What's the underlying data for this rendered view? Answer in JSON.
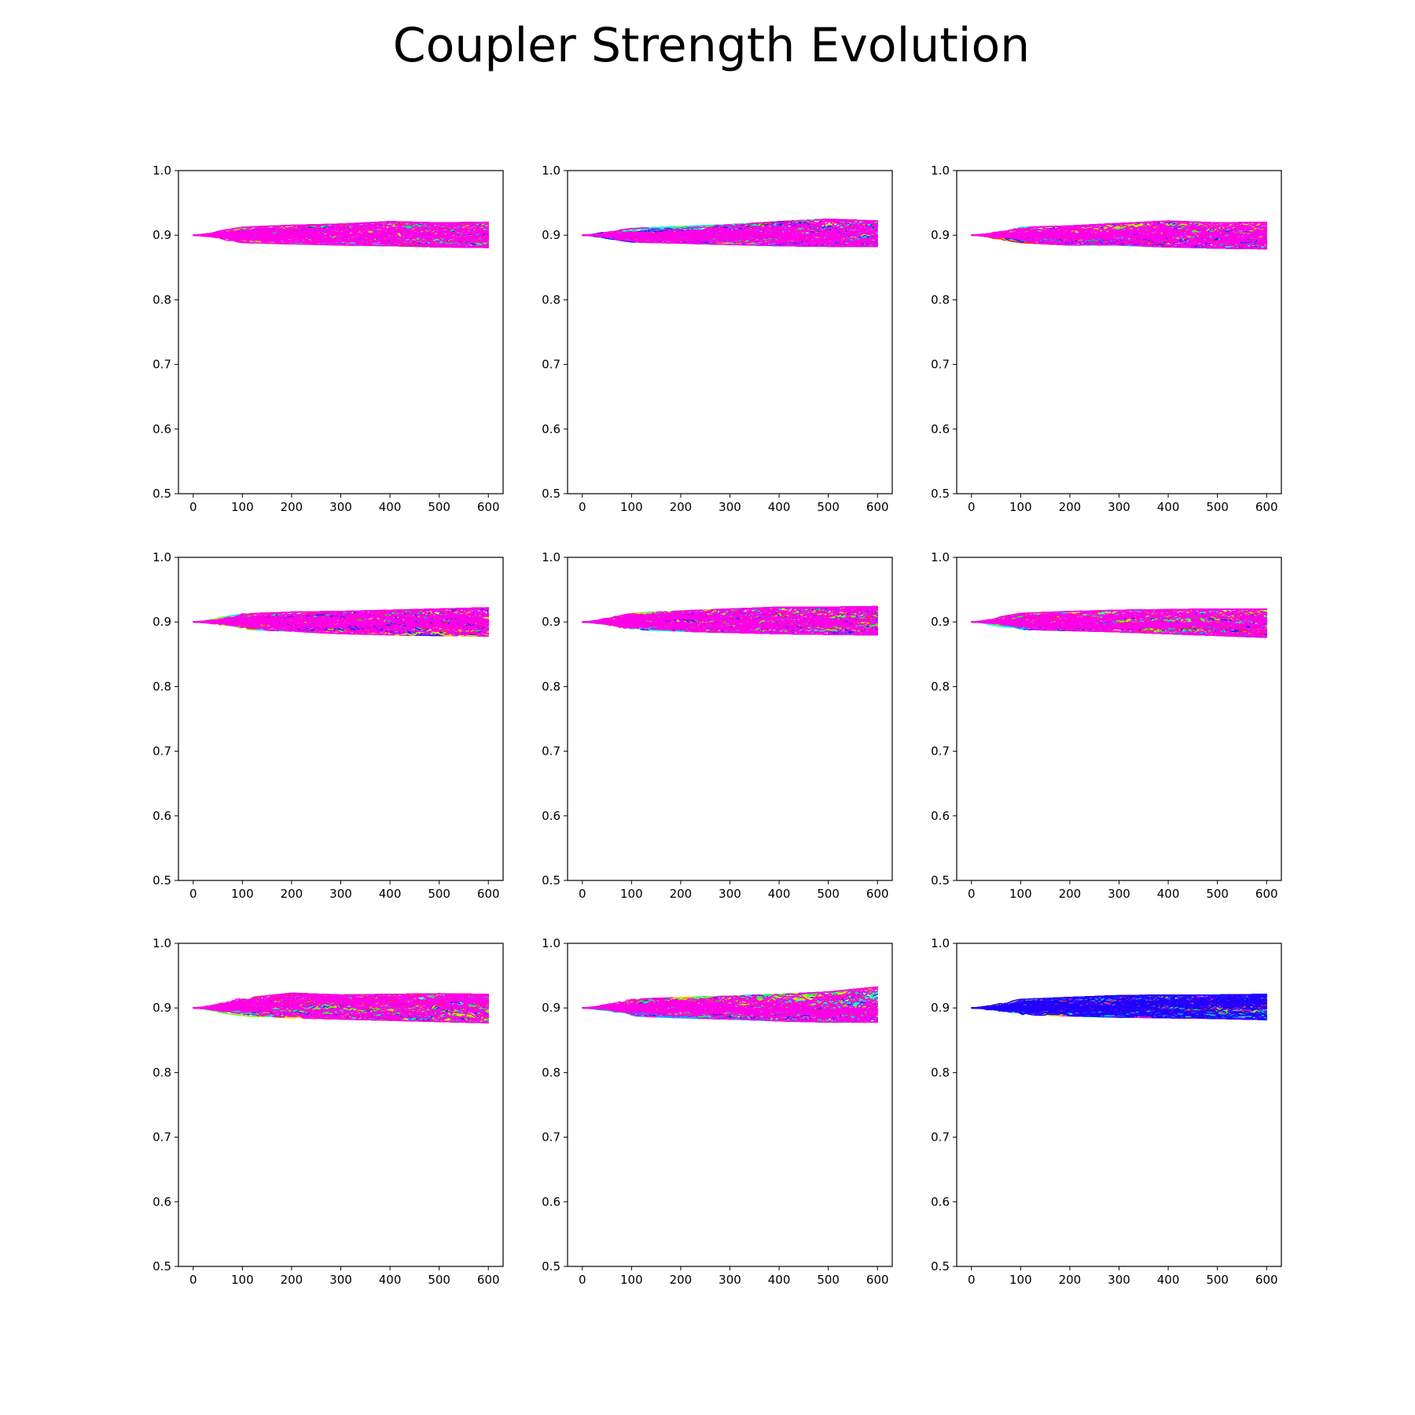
{
  "figure": {
    "title": "Coupler Strength Evolution",
    "title_color": "#000000"
  },
  "chart_data": [
    {
      "type": "line",
      "panel": "row1-col1",
      "xlim": [
        -30,
        630
      ],
      "ylim": [
        0.5,
        1.0
      ],
      "xticks": [
        0,
        100,
        200,
        300,
        400,
        500,
        600
      ],
      "yticks": [
        0.5,
        0.6,
        0.7,
        0.8,
        0.9,
        1.0
      ],
      "x_range": [
        0,
        600
      ],
      "start_value": 0.9,
      "band": {
        "x": [
          0,
          100,
          200,
          300,
          400,
          500,
          600
        ],
        "low": [
          0.9,
          0.888,
          0.886,
          0.884,
          0.883,
          0.881,
          0.88
        ],
        "high": [
          0.9,
          0.913,
          0.916,
          0.918,
          0.922,
          0.92,
          0.921
        ]
      },
      "series_colors": [
        "#ff2a00",
        "#ffd500",
        "#7cff00",
        "#00ff55",
        "#00ffd4",
        "#00aaff",
        "#002bff",
        "#5500ff",
        "#d400ff",
        "#ff00e6"
      ],
      "dominant_color": "#ff00e6",
      "grid": false
    },
    {
      "type": "line",
      "panel": "row1-col2",
      "xlim": [
        -30,
        630
      ],
      "ylim": [
        0.5,
        1.0
      ],
      "xticks": [
        0,
        100,
        200,
        300,
        400,
        500,
        600
      ],
      "yticks": [
        0.5,
        0.6,
        0.7,
        0.8,
        0.9,
        1.0
      ],
      "x_range": [
        0,
        600
      ],
      "start_value": 0.9,
      "band": {
        "x": [
          0,
          100,
          200,
          300,
          400,
          500,
          600
        ],
        "low": [
          0.9,
          0.889,
          0.887,
          0.885,
          0.883,
          0.882,
          0.882
        ],
        "high": [
          0.9,
          0.911,
          0.914,
          0.917,
          0.922,
          0.926,
          0.923
        ]
      },
      "series_colors": [
        "#ff2a00",
        "#ffd500",
        "#7cff00",
        "#00ff55",
        "#00ffd4",
        "#00aaff",
        "#002bff",
        "#5500ff",
        "#d400ff",
        "#ff00e6"
      ],
      "dominant_color": "#ff00e6",
      "grid": false
    },
    {
      "type": "line",
      "panel": "row1-col3",
      "xlim": [
        -30,
        630
      ],
      "ylim": [
        0.5,
        1.0
      ],
      "xticks": [
        0,
        100,
        200,
        300,
        400,
        500,
        600
      ],
      "yticks": [
        0.5,
        0.6,
        0.7,
        0.8,
        0.9,
        1.0
      ],
      "x_range": [
        0,
        600
      ],
      "start_value": 0.9,
      "band": {
        "x": [
          0,
          100,
          200,
          300,
          400,
          500,
          600
        ],
        "low": [
          0.9,
          0.888,
          0.884,
          0.884,
          0.881,
          0.879,
          0.878
        ],
        "high": [
          0.9,
          0.913,
          0.915,
          0.919,
          0.923,
          0.92,
          0.921
        ]
      },
      "series_colors": [
        "#ff2a00",
        "#ffd500",
        "#7cff00",
        "#00ff55",
        "#00ffd4",
        "#00aaff",
        "#002bff",
        "#5500ff",
        "#d400ff",
        "#ff00e6"
      ],
      "dominant_color": "#ff00e6",
      "grid": false
    },
    {
      "type": "line",
      "panel": "row2-col1",
      "xlim": [
        -30,
        630
      ],
      "ylim": [
        0.5,
        1.0
      ],
      "xticks": [
        0,
        100,
        200,
        300,
        400,
        500,
        600
      ],
      "yticks": [
        0.5,
        0.6,
        0.7,
        0.8,
        0.9,
        1.0
      ],
      "x_range": [
        0,
        600
      ],
      "start_value": 0.9,
      "band": {
        "x": [
          0,
          100,
          200,
          300,
          400,
          500,
          600
        ],
        "low": [
          0.9,
          0.888,
          0.885,
          0.881,
          0.879,
          0.878,
          0.877
        ],
        "high": [
          0.9,
          0.913,
          0.916,
          0.917,
          0.919,
          0.921,
          0.923
        ]
      },
      "series_colors": [
        "#ff2a00",
        "#ffd500",
        "#7cff00",
        "#00ff55",
        "#00ffd4",
        "#00aaff",
        "#002bff",
        "#5500ff",
        "#d400ff",
        "#ff00e6"
      ],
      "dominant_color": "#ff00e6",
      "grid": false
    },
    {
      "type": "line",
      "panel": "row2-col2",
      "xlim": [
        -30,
        630
      ],
      "ylim": [
        0.5,
        1.0
      ],
      "xticks": [
        0,
        100,
        200,
        300,
        400,
        500,
        600
      ],
      "yticks": [
        0.5,
        0.6,
        0.7,
        0.8,
        0.9,
        1.0
      ],
      "x_range": [
        0,
        600
      ],
      "start_value": 0.9,
      "band": {
        "x": [
          0,
          100,
          200,
          300,
          400,
          500,
          600
        ],
        "low": [
          0.9,
          0.888,
          0.885,
          0.883,
          0.881,
          0.88,
          0.879
        ],
        "high": [
          0.9,
          0.914,
          0.918,
          0.921,
          0.924,
          0.924,
          0.925
        ]
      },
      "series_colors": [
        "#ff2a00",
        "#ffd500",
        "#7cff00",
        "#00ff55",
        "#00ffd4",
        "#00aaff",
        "#002bff",
        "#5500ff",
        "#d400ff",
        "#ff00e6"
      ],
      "dominant_color": "#ff00e6",
      "grid": false
    },
    {
      "type": "line",
      "panel": "row2-col3",
      "xlim": [
        -30,
        630
      ],
      "ylim": [
        0.5,
        1.0
      ],
      "xticks": [
        0,
        100,
        200,
        300,
        400,
        500,
        600
      ],
      "yticks": [
        0.5,
        0.6,
        0.7,
        0.8,
        0.9,
        1.0
      ],
      "x_range": [
        0,
        600
      ],
      "start_value": 0.9,
      "band": {
        "x": [
          0,
          100,
          200,
          300,
          400,
          500,
          600
        ],
        "low": [
          0.9,
          0.888,
          0.886,
          0.884,
          0.881,
          0.878,
          0.875
        ],
        "high": [
          0.9,
          0.914,
          0.917,
          0.919,
          0.92,
          0.921,
          0.921
        ]
      },
      "series_colors": [
        "#ff2a00",
        "#ffd500",
        "#7cff00",
        "#00ff55",
        "#00ffd4",
        "#00aaff",
        "#002bff",
        "#5500ff",
        "#d400ff",
        "#ff00e6"
      ],
      "dominant_color": "#ff00e6",
      "grid": false
    },
    {
      "type": "line",
      "panel": "row3-col1",
      "xlim": [
        -30,
        630
      ],
      "ylim": [
        0.5,
        1.0
      ],
      "xticks": [
        0,
        100,
        200,
        300,
        400,
        500,
        600
      ],
      "yticks": [
        0.5,
        0.6,
        0.7,
        0.8,
        0.9,
        1.0
      ],
      "x_range": [
        0,
        600
      ],
      "start_value": 0.9,
      "band": {
        "x": [
          0,
          100,
          200,
          300,
          400,
          500,
          600
        ],
        "low": [
          0.9,
          0.887,
          0.884,
          0.882,
          0.88,
          0.878,
          0.876
        ],
        "high": [
          0.9,
          0.916,
          0.924,
          0.921,
          0.922,
          0.923,
          0.922
        ]
      },
      "series_colors": [
        "#ff2a00",
        "#ffd500",
        "#7cff00",
        "#00ff55",
        "#00ffd4",
        "#00aaff",
        "#002bff",
        "#5500ff",
        "#d400ff",
        "#ff00e6"
      ],
      "dominant_color": "#ff00e6",
      "grid": false
    },
    {
      "type": "line",
      "panel": "row3-col2",
      "xlim": [
        -30,
        630
      ],
      "ylim": [
        0.5,
        1.0
      ],
      "xticks": [
        0,
        100,
        200,
        300,
        400,
        500,
        600
      ],
      "yticks": [
        0.5,
        0.6,
        0.7,
        0.8,
        0.9,
        1.0
      ],
      "x_range": [
        0,
        600
      ],
      "start_value": 0.9,
      "band": {
        "x": [
          0,
          100,
          200,
          300,
          400,
          500,
          600
        ],
        "low": [
          0.9,
          0.887,
          0.884,
          0.882,
          0.879,
          0.877,
          0.877
        ],
        "high": [
          0.9,
          0.914,
          0.917,
          0.919,
          0.922,
          0.926,
          0.934
        ]
      },
      "series_colors": [
        "#ff2a00",
        "#ffd500",
        "#7cff00",
        "#00ff55",
        "#00ffd4",
        "#00aaff",
        "#002bff",
        "#5500ff",
        "#d400ff",
        "#ff00e6"
      ],
      "dominant_color": "#ff00e6",
      "grid": false
    },
    {
      "type": "line",
      "panel": "row3-col3",
      "xlim": [
        -30,
        630
      ],
      "ylim": [
        0.5,
        1.0
      ],
      "xticks": [
        0,
        100,
        200,
        300,
        400,
        500,
        600
      ],
      "yticks": [
        0.5,
        0.6,
        0.7,
        0.8,
        0.9,
        1.0
      ],
      "x_range": [
        0,
        600
      ],
      "start_value": 0.9,
      "band": {
        "x": [
          0,
          100,
          200,
          300,
          400,
          500,
          600
        ],
        "low": [
          0.9,
          0.889,
          0.887,
          0.885,
          0.884,
          0.883,
          0.881
        ],
        "high": [
          0.9,
          0.914,
          0.917,
          0.92,
          0.921,
          0.921,
          0.922
        ]
      },
      "series_colors": [
        "#ff2a00",
        "#ffd500",
        "#7cff00",
        "#00ff55",
        "#00ffd4",
        "#00aaff",
        "#002bff",
        "#5500ff",
        "#d400ff",
        "#ff00e6"
      ],
      "dominant_color": "#2200ff",
      "grid": false
    }
  ]
}
